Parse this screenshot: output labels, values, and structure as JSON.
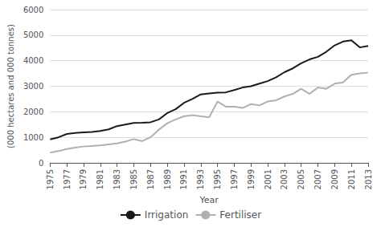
{
  "chart_data": {
    "type": "line",
    "x": [
      1975,
      1976,
      1977,
      1978,
      1979,
      1980,
      1981,
      1982,
      1983,
      1984,
      1985,
      1986,
      1987,
      1988,
      1989,
      1990,
      1991,
      1992,
      1993,
      1994,
      1995,
      1996,
      1997,
      1998,
      1999,
      2000,
      2001,
      2002,
      2003,
      2004,
      2005,
      2006,
      2007,
      2008,
      2009,
      2010,
      2011,
      2012,
      2013
    ],
    "series": [
      {
        "name": "Irrigation",
        "color": "#1a1a1a",
        "values": [
          920,
          1000,
          1130,
          1170,
          1190,
          1210,
          1250,
          1310,
          1440,
          1500,
          1560,
          1570,
          1590,
          1700,
          1950,
          2100,
          2350,
          2500,
          2680,
          2720,
          2750,
          2760,
          2850,
          2950,
          3000,
          3100,
          3200,
          3350,
          3550,
          3700,
          3900,
          4050,
          4150,
          4350,
          4600,
          4750,
          4800,
          4520,
          4580
        ]
      },
      {
        "name": "Fertiliser",
        "color": "#b0b0b0",
        "values": [
          400,
          460,
          540,
          600,
          640,
          660,
          680,
          720,
          760,
          830,
          930,
          850,
          1000,
          1300,
          1550,
          1700,
          1820,
          1870,
          1820,
          1780,
          2400,
          2200,
          2200,
          2150,
          2300,
          2250,
          2400,
          2450,
          2600,
          2700,
          2900,
          2700,
          2950,
          2900,
          3100,
          3150,
          3450,
          3500,
          3530
        ]
      }
    ],
    "xlabel": "Year",
    "ylabel": "(000 hectares and 000 tonnes)",
    "xlim": [
      1975,
      2013
    ],
    "xticks": [
      1975,
      1977,
      1979,
      1981,
      1983,
      1985,
      1987,
      1989,
      1991,
      1993,
      1995,
      1997,
      1999,
      2001,
      2003,
      2005,
      2007,
      2009,
      2011,
      2013
    ],
    "ylim": [
      0,
      6000
    ],
    "yticks": [
      0,
      1000,
      2000,
      3000,
      4000,
      5000,
      6000
    ],
    "grid": true,
    "legend": "bottom"
  }
}
